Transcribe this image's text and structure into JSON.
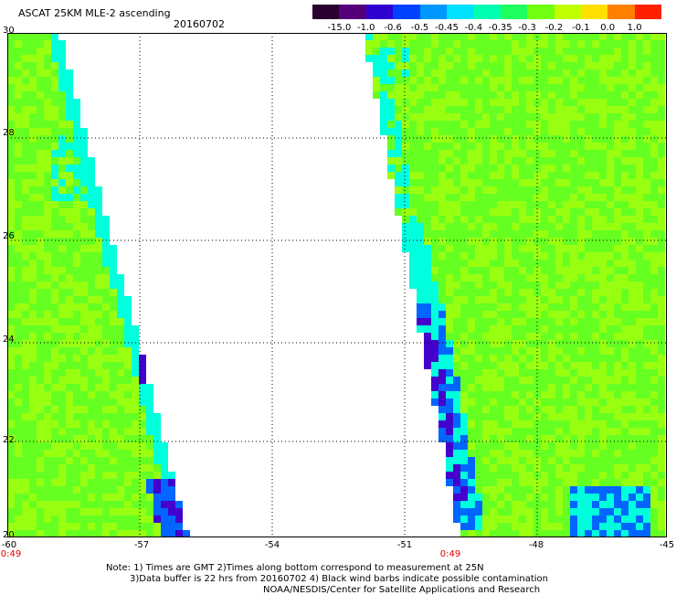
{
  "header": {
    "title": "ASCAT 25KM MLE-2 ascending",
    "date": "20160702"
  },
  "colorbar": {
    "labels": [
      "-15.0",
      "-1.0",
      "-0.6",
      "-0.5",
      "-0.45",
      "-0.4",
      "-0.35",
      "-0.3",
      "-0.2",
      "-0.1",
      "0.0",
      "1.0"
    ],
    "colors": [
      "#2a0030",
      "#55007a",
      "#3000d0",
      "#0040ff",
      "#0098ff",
      "#00e0ff",
      "#00ffb0",
      "#20ff60",
      "#70ff10",
      "#c0ff00",
      "#ffe000",
      "#ff8000",
      "#ff2000"
    ]
  },
  "map": {
    "y_axis": {
      "labels": [
        "30",
        "28",
        "26",
        "24",
        "22",
        "20"
      ]
    },
    "x_axis": {
      "labels": [
        "-60",
        "-57",
        "-54",
        "-51",
        "-48",
        "-45"
      ]
    },
    "swath_time_labels": [
      "0:49",
      "0:49"
    ],
    "colors": {
      "field_green": "#66ff22",
      "field_lime": "#99ff11",
      "low_cyan": "#00ffdd",
      "low_blue": "#0066ff",
      "very_low_purple": "#4400cc",
      "background": "#ffffff"
    }
  },
  "footer": {
    "note1": "Note: 1) Times are GMT 2)Times along bottom correspond to measurement at 25N",
    "note2": "3)Data buffer is 22 hrs from 20160702 4) Black wind barbs indicate possible contamination",
    "credit": "NOAA/NESDIS/Center for Satellite Applications and Research"
  }
}
